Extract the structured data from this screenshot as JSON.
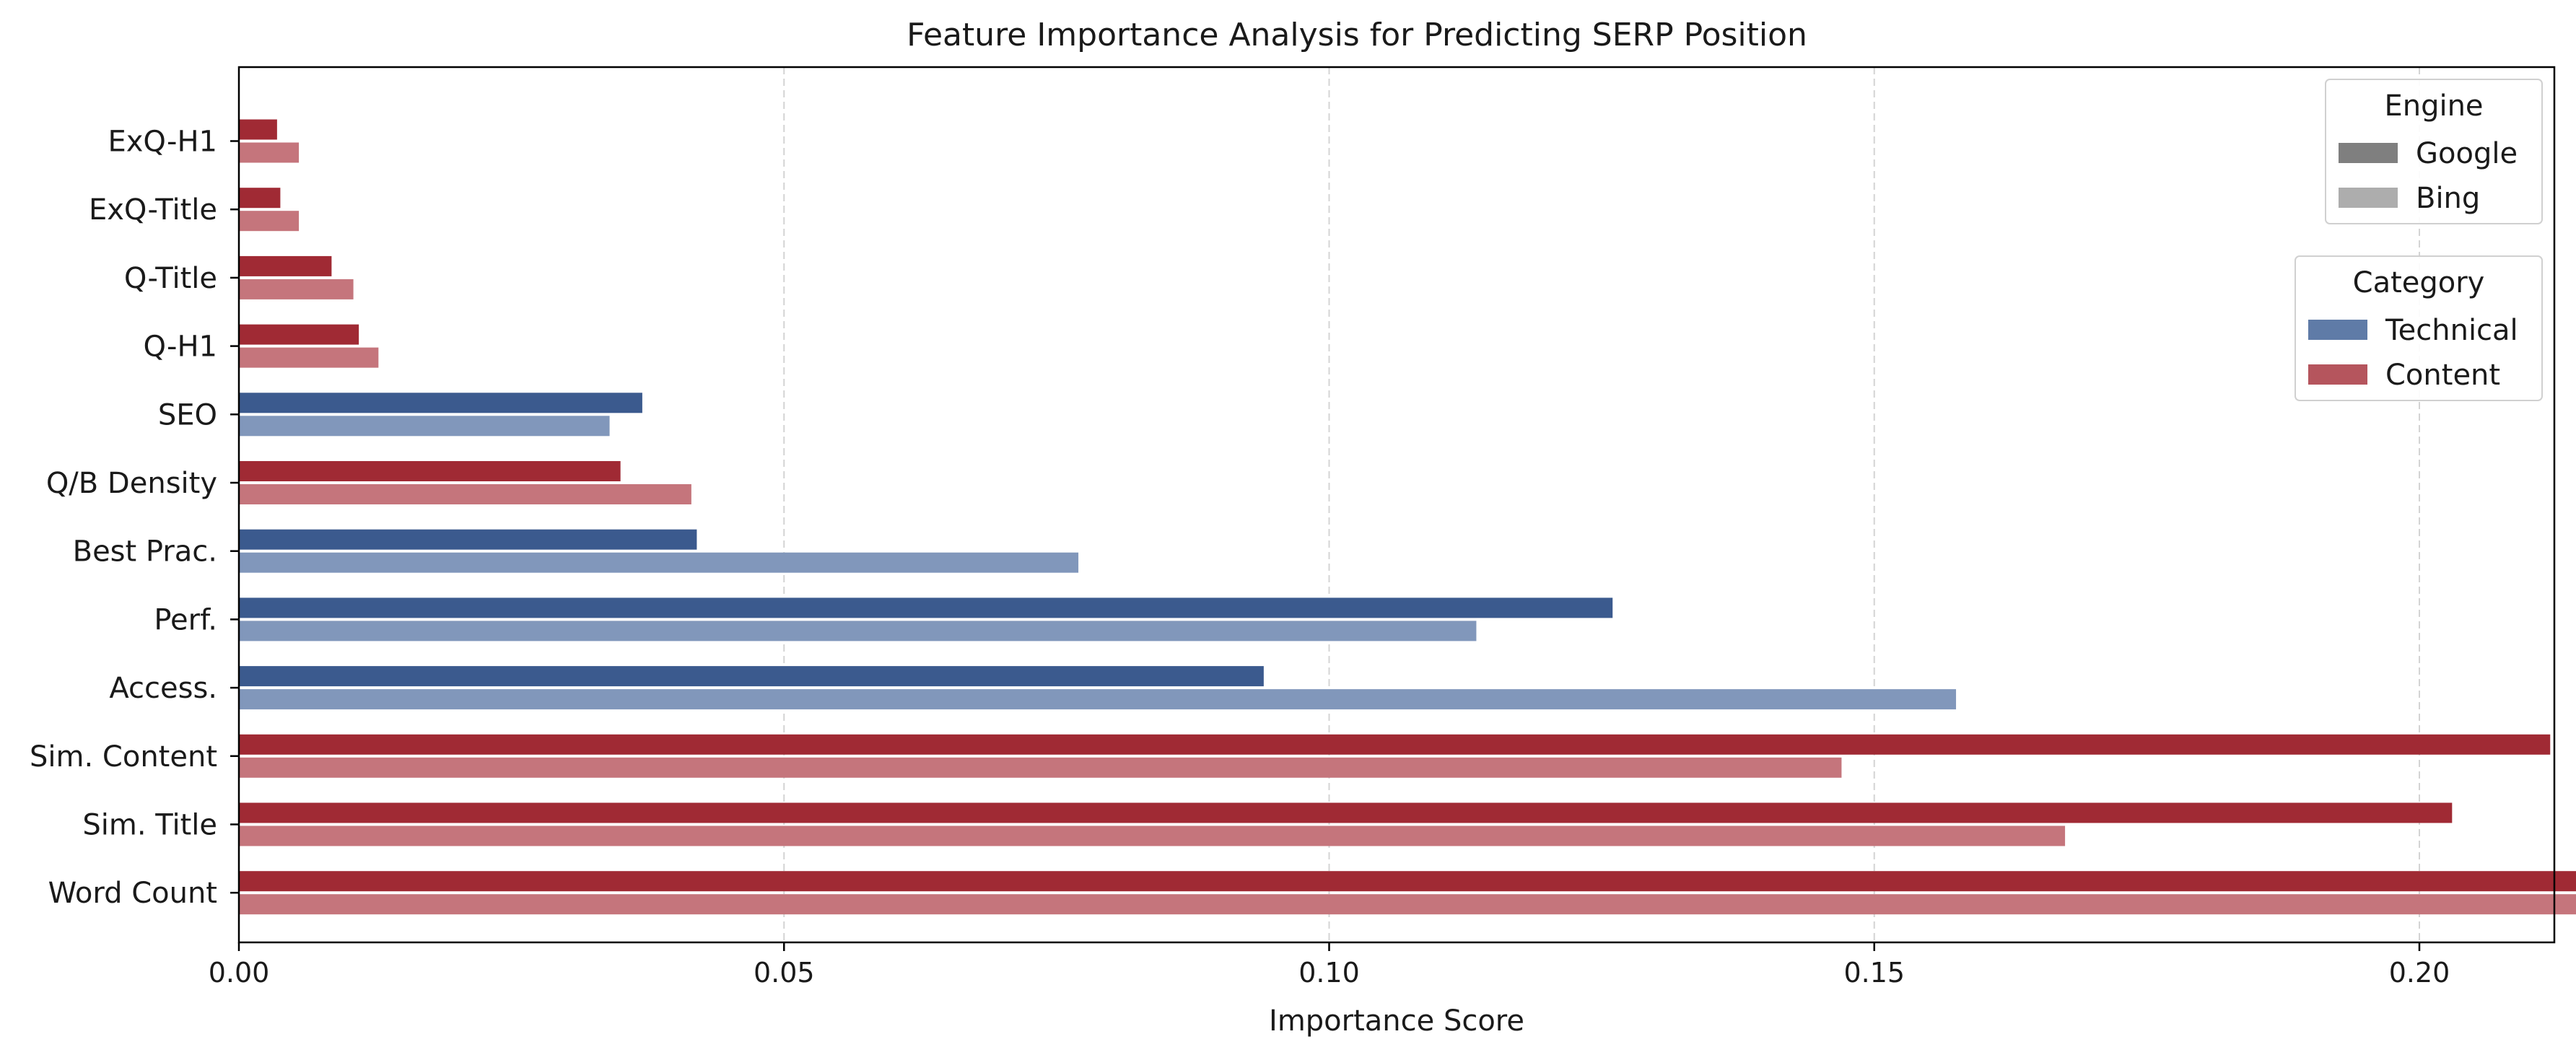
{
  "chart_data": {
    "type": "bar",
    "orientation": "horizontal",
    "title": "Feature Importance Analysis for Predicting SERP Position",
    "xlabel": "Importance Score",
    "ylabel": "",
    "xlim": [
      0,
      0.24
    ],
    "xticks": [
      0.0,
      0.05,
      0.1,
      0.15,
      0.2
    ],
    "xtick_labels": [
      "0.00",
      "0.05",
      "0.10",
      "0.15",
      "0.20"
    ],
    "grid": "x dashed",
    "categories": [
      "ExQ-H1",
      "ExQ-Title",
      "Q-Title",
      "Q-H1",
      "SEO",
      "Q/B Density",
      "Best Prac.",
      "Perf.",
      "Access.",
      "Sim. Content",
      "Sim. Title",
      "Word Count"
    ],
    "category_type": [
      "Content",
      "Content",
      "Content",
      "Content",
      "Technical",
      "Content",
      "Technical",
      "Technical",
      "Technical",
      "Content",
      "Content",
      "Content"
    ],
    "series": [
      {
        "name": "Google",
        "values": [
          0.0035,
          0.0038,
          0.0085,
          0.011,
          0.037,
          0.035,
          0.042,
          0.126,
          0.094,
          0.212,
          0.203,
          0.225
        ]
      },
      {
        "name": "Bing",
        "values": [
          0.0055,
          0.0055,
          0.0105,
          0.0128,
          0.034,
          0.0415,
          0.077,
          0.1135,
          0.1575,
          0.147,
          0.1675,
          0.228
        ]
      }
    ],
    "colors": {
      "Technical": {
        "Google": "#3b5a8e",
        "Bing": "#8197bb"
      },
      "Content": {
        "Google": "#a02a34",
        "Bing": "#c5757c"
      }
    },
    "legends": [
      {
        "title": "Engine",
        "placement": "top-right",
        "entries": [
          {
            "label": "Google",
            "color": "#7f7f7f"
          },
          {
            "label": "Bing",
            "color": "#adadad"
          }
        ]
      },
      {
        "title": "Category",
        "placement": "upper-right",
        "entries": [
          {
            "label": "Technical",
            "color": "#5f7ba7"
          },
          {
            "label": "Content",
            "color": "#b5555d"
          }
        ]
      }
    ]
  }
}
